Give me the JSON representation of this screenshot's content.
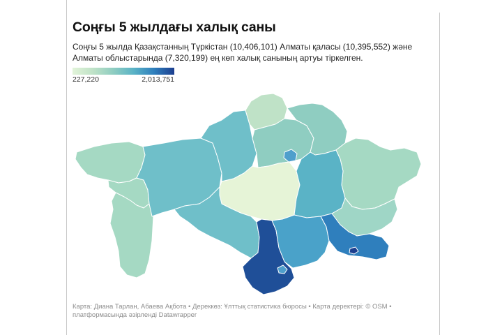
{
  "title": "Соңғы 5 жылдағы халық саны",
  "subtitle": "Соңғы 5 жылда Қазақстанның Түркістан (10,406,101) Алматы қаласы (10,395,552) және Алматы облыстарында (7,320,199) ең көп халық санының артуы тіркелген.",
  "legend": {
    "min_label": "227,220",
    "max_label": "2,013,751"
  },
  "colors": {
    "scale_low": "#e2f4d9",
    "scale_mid": "#8fcdc1",
    "scale_high": "#1c3f8f",
    "border": "#ffffff"
  },
  "footer": "Карта: Диана Тарлан, Абаева Ақбота • Дереккөз: Ұлттық статистика бюросы • Карта деректері: © OSM • платформасында әзірленді Datawrapper"
}
